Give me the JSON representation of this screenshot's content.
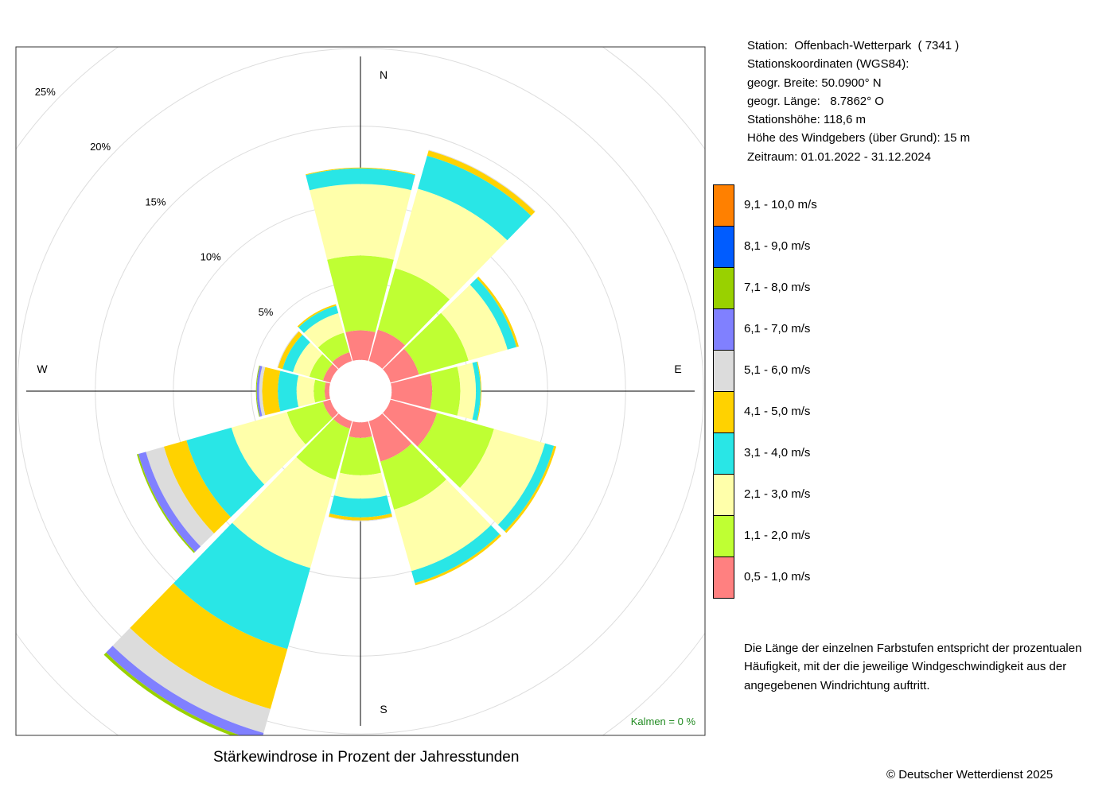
{
  "station": {
    "lines": [
      "Station:  Offenbach-Wetterpark  ( 7341 )",
      "Stationskoordinaten (WGS84):",
      "geogr. Breite: 50.0900° N",
      "geogr. Länge:   8.7862° O",
      "Stationshöhe: 118,6 m",
      "Höhe des Windgebers (über Grund): 15 m",
      "Zeitraum: 01.01.2022 - 31.12.2024"
    ]
  },
  "chart_data": {
    "type": "wind-rose",
    "title": "Stärkewindrose in Prozent der Jahresstunden",
    "directions": [
      "N",
      "NNE",
      "ENE",
      "E",
      "ESE",
      "SSE",
      "S",
      "SSW",
      "WSW",
      "W",
      "WNW",
      "NNW"
    ],
    "direction_angles_deg": [
      0,
      30,
      60,
      90,
      120,
      150,
      180,
      210,
      240,
      270,
      300,
      330
    ],
    "compass_labels": [
      "N",
      "E",
      "S",
      "W"
    ],
    "ring_labels": [
      "5%",
      "10%",
      "15%",
      "20%",
      "25%"
    ],
    "ring_values": [
      5,
      10,
      15,
      20,
      25
    ],
    "calm_circle_percent": 2,
    "speed_classes": [
      {
        "label": "0,5 - 1,0 m/s",
        "color": "#ff8080"
      },
      {
        "label": "1,1 - 2,0 m/s",
        "color": "#bfff33"
      },
      {
        "label": "2,1 - 3,0 m/s",
        "color": "#ffffaa"
      },
      {
        "label": "3,1 - 4,0 m/s",
        "color": "#29e6e6"
      },
      {
        "label": "4,1 - 5,0 m/s",
        "color": "#ffd200"
      },
      {
        "label": "5,1 - 6,0 m/s",
        "color": "#dcdcdc"
      },
      {
        "label": "6,1 - 7,0 m/s",
        "color": "#8080ff"
      },
      {
        "label": "7,1 - 8,0 m/s",
        "color": "#99d100"
      },
      {
        "label": "8,1 - 9,0 m/s",
        "color": "#005cff"
      },
      {
        "label": "9,1 - 10,0 m/s",
        "color": "#ff8000"
      }
    ],
    "frequency_percent": [
      [
        1.9,
        4.8,
        4.6,
        1.0,
        0.05,
        0,
        0,
        0,
        0,
        0
      ],
      [
        2.1,
        4.1,
        5.3,
        2.2,
        0.35,
        0.05,
        0,
        0,
        0,
        0
      ],
      [
        1.9,
        3.3,
        2.6,
        0.6,
        0.15,
        0,
        0,
        0,
        0,
        0
      ],
      [
        2.6,
        1.8,
        1.0,
        0.3,
        0.05,
        0,
        0,
        0,
        0,
        0
      ],
      [
        3.1,
        3.8,
        3.4,
        0.6,
        0.15,
        0,
        0,
        0,
        0,
        0
      ],
      [
        2.7,
        3.2,
        4.1,
        0.8,
        0.15,
        0,
        0,
        0,
        0,
        0
      ],
      [
        1.0,
        2.4,
        1.5,
        1.2,
        0.2,
        0.05,
        0,
        0,
        0,
        0
      ],
      [
        0.5,
        3.4,
        5.9,
        5.4,
        4.0,
        1.6,
        0.6,
        0.2,
        0,
        0
      ],
      [
        0.5,
        2.4,
        3.7,
        3.0,
        1.5,
        1.2,
        0.5,
        0.1,
        0,
        0
      ],
      [
        0.3,
        0.7,
        1.1,
        1.2,
        1.0,
        0.2,
        0.15,
        0.05,
        0,
        0
      ],
      [
        0.5,
        0.9,
        1.1,
        0.7,
        0.3,
        0.05,
        0,
        0,
        0,
        0
      ],
      [
        0.6,
        1.3,
        1.3,
        0.5,
        0.1,
        0,
        0,
        0,
        0,
        0
      ]
    ],
    "calm_label": "Kalmen  =  0 %"
  },
  "colors": {
    "calm": "#228b22",
    "axis": "#000000",
    "ring": "#dddddd"
  },
  "note": "Die Länge der einzelnen Farbstufen entspricht der prozentualen Häufigkeit, mit der die jeweilige Windgeschwindigkeit aus der angegebenen Windrichtung auftritt.",
  "copyright": "© Deutscher Wetterdienst  2025"
}
